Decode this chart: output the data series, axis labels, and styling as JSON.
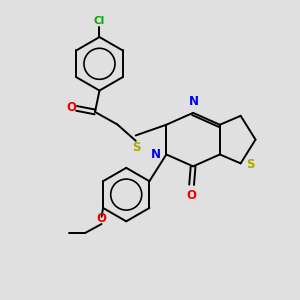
{
  "background_color": "#e0e0e0",
  "atom_colors": {
    "C": "#000000",
    "N": "#0000ee",
    "O": "#ee0000",
    "S": "#aaaa00",
    "Cl": "#00aa00"
  },
  "bond_color": "#000000",
  "bond_width": 1.4,
  "figsize": [
    3.0,
    3.0
  ],
  "dpi": 100
}
